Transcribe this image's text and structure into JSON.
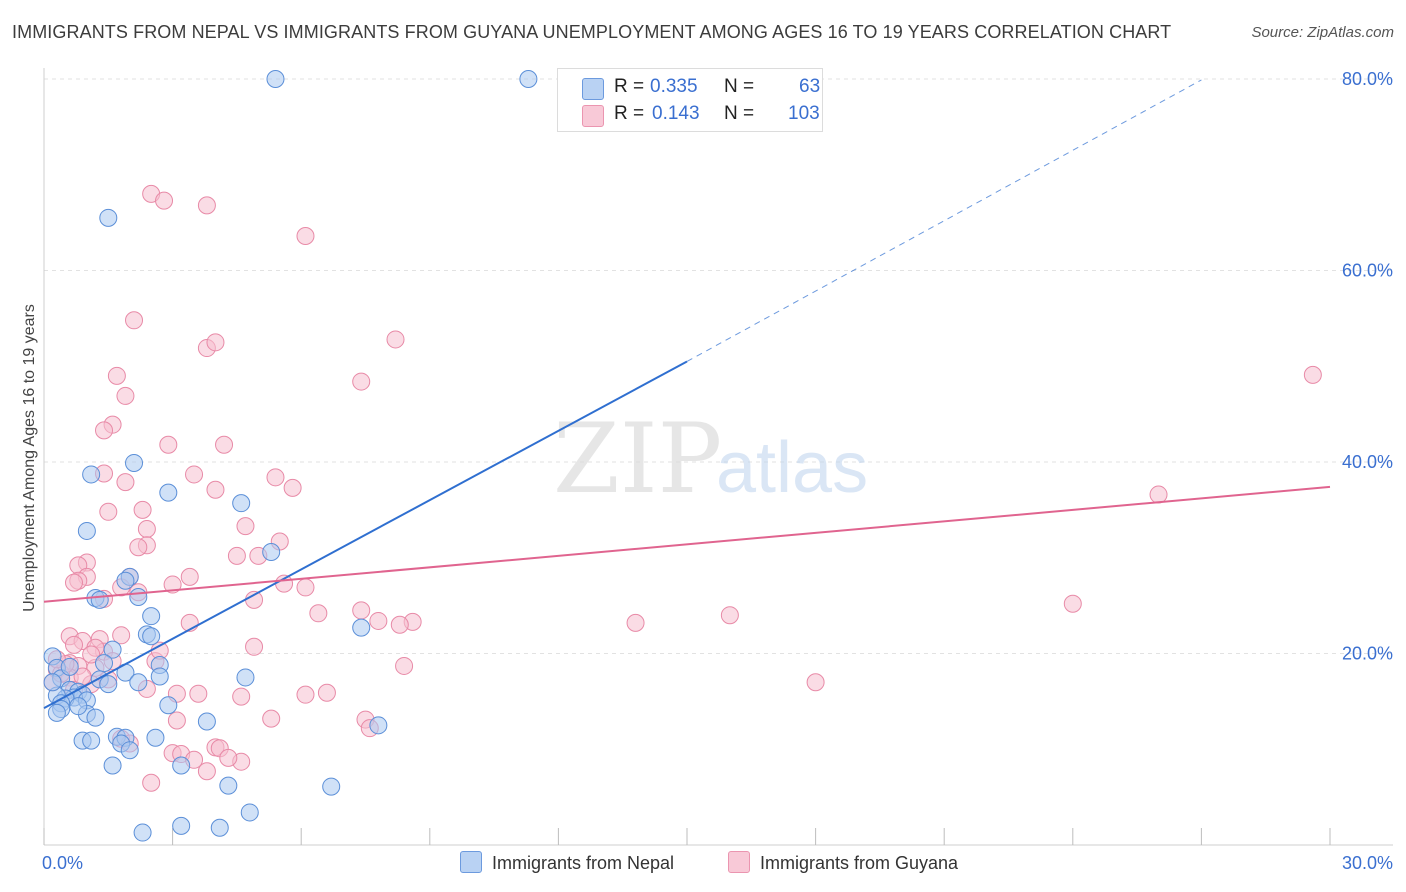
{
  "header": {
    "title": "IMMIGRANTS FROM NEPAL VS IMMIGRANTS FROM GUYANA UNEMPLOYMENT AMONG AGES 16 TO 19 YEARS CORRELATION CHART",
    "source": "Source: ZipAtlas.com"
  },
  "watermark": {
    "zip": "ZIP",
    "atlas": "atlas"
  },
  "colors": {
    "nepal_fill": "#a9c8f0",
    "nepal_stroke": "#5b8fd8",
    "nepal_line": "#2f6fd0",
    "guyana_fill": "#f6bfd0",
    "guyana_stroke": "#e88aa7",
    "guyana_line": "#e0648f",
    "axis_label": "#3a6fd0",
    "grid": "#e2e2e2"
  },
  "legend": {
    "r_label": "R =",
    "n_label": "N =",
    "nepal": {
      "r": "0.335",
      "n": "63"
    },
    "guyana": {
      "r": "0.143",
      "n": "103"
    }
  },
  "chart_data": {
    "type": "scatter",
    "title": "IMMIGRANTS FROM NEPAL VS IMMIGRANTS FROM GUYANA UNEMPLOYMENT AMONG AGES 16 TO 19 YEARS CORRELATION CHART",
    "xlabel": "",
    "ylabel": "Unemployment Among Ages 16 to 19 years",
    "xlim": [
      0,
      30
    ],
    "ylim": [
      0,
      80
    ],
    "x_tick_labels": [
      "0.0%",
      "30.0%"
    ],
    "y_ticks": [
      20,
      40,
      60,
      80
    ],
    "y_tick_labels": [
      "20.0%",
      "40.0%",
      "60.0%",
      "80.0%"
    ],
    "grid": true,
    "legend_position": "bottom",
    "series": [
      {
        "name": "Immigrants from Nepal",
        "r": 0.335,
        "n": 63,
        "trend": {
          "x0": 0.0,
          "y0": 14.3,
          "x1": 15.0,
          "y1": 50.5,
          "dashed_to_x": 27.0,
          "dashed_to_y": 79.9
        },
        "points": [
          [
            5.4,
            80.0
          ],
          [
            11.3,
            80.0
          ],
          [
            1.5,
            65.5
          ],
          [
            2.1,
            39.9
          ],
          [
            2.9,
            36.8
          ],
          [
            4.6,
            35.7
          ],
          [
            1.1,
            38.7
          ],
          [
            1.0,
            32.8
          ],
          [
            5.3,
            30.6
          ],
          [
            2.0,
            28.0
          ],
          [
            1.9,
            27.6
          ],
          [
            1.2,
            25.8
          ],
          [
            1.3,
            25.6
          ],
          [
            2.2,
            25.9
          ],
          [
            2.5,
            23.9
          ],
          [
            7.4,
            22.7
          ],
          [
            2.4,
            22.0
          ],
          [
            2.5,
            21.8
          ],
          [
            1.6,
            20.4
          ],
          [
            0.2,
            19.7
          ],
          [
            1.4,
            19.0
          ],
          [
            2.7,
            18.8
          ],
          [
            0.3,
            18.5
          ],
          [
            1.9,
            18.0
          ],
          [
            0.4,
            17.4
          ],
          [
            2.7,
            17.6
          ],
          [
            4.7,
            17.5
          ],
          [
            1.3,
            17.3
          ],
          [
            2.2,
            17.0
          ],
          [
            0.6,
            16.2
          ],
          [
            0.8,
            16.0
          ],
          [
            0.9,
            15.7
          ],
          [
            0.7,
            15.4
          ],
          [
            0.5,
            15.3
          ],
          [
            0.3,
            15.6
          ],
          [
            1.0,
            15.1
          ],
          [
            0.4,
            14.8
          ],
          [
            2.9,
            14.6
          ],
          [
            0.4,
            14.2
          ],
          [
            0.3,
            13.8
          ],
          [
            1.0,
            13.7
          ],
          [
            1.2,
            13.3
          ],
          [
            3.8,
            12.9
          ],
          [
            7.8,
            12.5
          ],
          [
            1.7,
            11.3
          ],
          [
            1.9,
            11.2
          ],
          [
            2.6,
            11.2
          ],
          [
            0.9,
            10.9
          ],
          [
            1.1,
            10.9
          ],
          [
            1.8,
            10.6
          ],
          [
            2.0,
            9.9
          ],
          [
            1.6,
            8.3
          ],
          [
            3.2,
            8.3
          ],
          [
            4.3,
            6.2
          ],
          [
            6.7,
            6.1
          ],
          [
            4.8,
            3.4
          ],
          [
            3.2,
            2.0
          ],
          [
            4.1,
            1.8
          ],
          [
            2.3,
            1.3
          ],
          [
            0.2,
            17.0
          ],
          [
            0.6,
            18.6
          ],
          [
            1.5,
            16.8
          ],
          [
            0.8,
            14.5
          ]
        ]
      },
      {
        "name": "Immigrants from Guyana",
        "r": 0.143,
        "n": 103,
        "trend": {
          "x0": 0.0,
          "y0": 25.4,
          "x1": 30.0,
          "y1": 37.4
        },
        "points": [
          [
            2.5,
            68.0
          ],
          [
            2.8,
            67.3
          ],
          [
            3.8,
            66.8
          ],
          [
            6.1,
            63.6
          ],
          [
            2.1,
            54.8
          ],
          [
            8.2,
            52.8
          ],
          [
            3.8,
            51.9
          ],
          [
            4.0,
            52.5
          ],
          [
            1.7,
            49.0
          ],
          [
            7.4,
            48.4
          ],
          [
            29.6,
            49.1
          ],
          [
            1.9,
            46.9
          ],
          [
            1.6,
            43.9
          ],
          [
            1.4,
            43.3
          ],
          [
            2.9,
            41.8
          ],
          [
            4.2,
            41.8
          ],
          [
            1.4,
            38.8
          ],
          [
            3.5,
            38.7
          ],
          [
            5.4,
            38.4
          ],
          [
            5.8,
            37.3
          ],
          [
            4.0,
            37.1
          ],
          [
            1.9,
            37.9
          ],
          [
            26.0,
            36.6
          ],
          [
            2.3,
            35.0
          ],
          [
            1.5,
            34.8
          ],
          [
            4.7,
            33.3
          ],
          [
            2.4,
            33.0
          ],
          [
            5.5,
            31.7
          ],
          [
            2.4,
            31.3
          ],
          [
            2.2,
            31.1
          ],
          [
            4.5,
            30.2
          ],
          [
            5.0,
            30.2
          ],
          [
            1.0,
            29.5
          ],
          [
            0.8,
            29.2
          ],
          [
            1.0,
            28.0
          ],
          [
            3.4,
            28.0
          ],
          [
            2.0,
            28.0
          ],
          [
            0.8,
            27.6
          ],
          [
            0.7,
            27.4
          ],
          [
            3.0,
            27.2
          ],
          [
            1.8,
            26.9
          ],
          [
            6.1,
            26.9
          ],
          [
            1.4,
            25.7
          ],
          [
            4.9,
            25.6
          ],
          [
            24.0,
            25.2
          ],
          [
            6.4,
            24.2
          ],
          [
            7.4,
            24.5
          ],
          [
            16.0,
            24.0
          ],
          [
            7.8,
            23.4
          ],
          [
            8.6,
            23.3
          ],
          [
            13.8,
            23.2
          ],
          [
            8.3,
            23.0
          ],
          [
            3.4,
            23.2
          ],
          [
            1.8,
            21.9
          ],
          [
            0.6,
            21.8
          ],
          [
            1.3,
            21.5
          ],
          [
            0.9,
            21.3
          ],
          [
            4.9,
            20.7
          ],
          [
            1.4,
            20.2
          ],
          [
            1.6,
            19.2
          ],
          [
            2.6,
            19.2
          ],
          [
            0.6,
            19.0
          ],
          [
            0.8,
            18.7
          ],
          [
            1.2,
            18.5
          ],
          [
            8.4,
            18.7
          ],
          [
            0.3,
            18.3
          ],
          [
            0.6,
            17.5
          ],
          [
            0.2,
            17.0
          ],
          [
            1.1,
            16.8
          ],
          [
            18.0,
            17.0
          ],
          [
            0.7,
            16.2
          ],
          [
            2.4,
            16.3
          ],
          [
            3.1,
            15.8
          ],
          [
            3.6,
            15.8
          ],
          [
            4.6,
            15.5
          ],
          [
            6.1,
            15.7
          ],
          [
            6.6,
            15.9
          ],
          [
            3.1,
            13.0
          ],
          [
            5.3,
            13.2
          ],
          [
            7.5,
            13.1
          ],
          [
            7.6,
            12.2
          ],
          [
            1.8,
            11.1
          ],
          [
            2.0,
            10.6
          ],
          [
            3.0,
            9.6
          ],
          [
            3.2,
            9.5
          ],
          [
            4.0,
            10.2
          ],
          [
            4.1,
            10.1
          ],
          [
            4.6,
            8.7
          ],
          [
            3.8,
            7.7
          ],
          [
            2.5,
            6.5
          ],
          [
            0.4,
            17.9
          ],
          [
            0.5,
            18.9
          ],
          [
            0.9,
            17.6
          ],
          [
            1.5,
            17.3
          ],
          [
            0.3,
            19.4
          ],
          [
            1.2,
            20.6
          ],
          [
            2.7,
            20.3
          ],
          [
            4.3,
            9.1
          ],
          [
            3.5,
            8.9
          ],
          [
            5.6,
            27.3
          ],
          [
            1.1,
            19.9
          ],
          [
            0.7,
            20.9
          ],
          [
            2.2,
            26.4
          ]
        ]
      }
    ]
  },
  "bottom_legend": {
    "nepal_label": "Immigrants from Nepal",
    "guyana_label": "Immigrants from Guyana"
  }
}
